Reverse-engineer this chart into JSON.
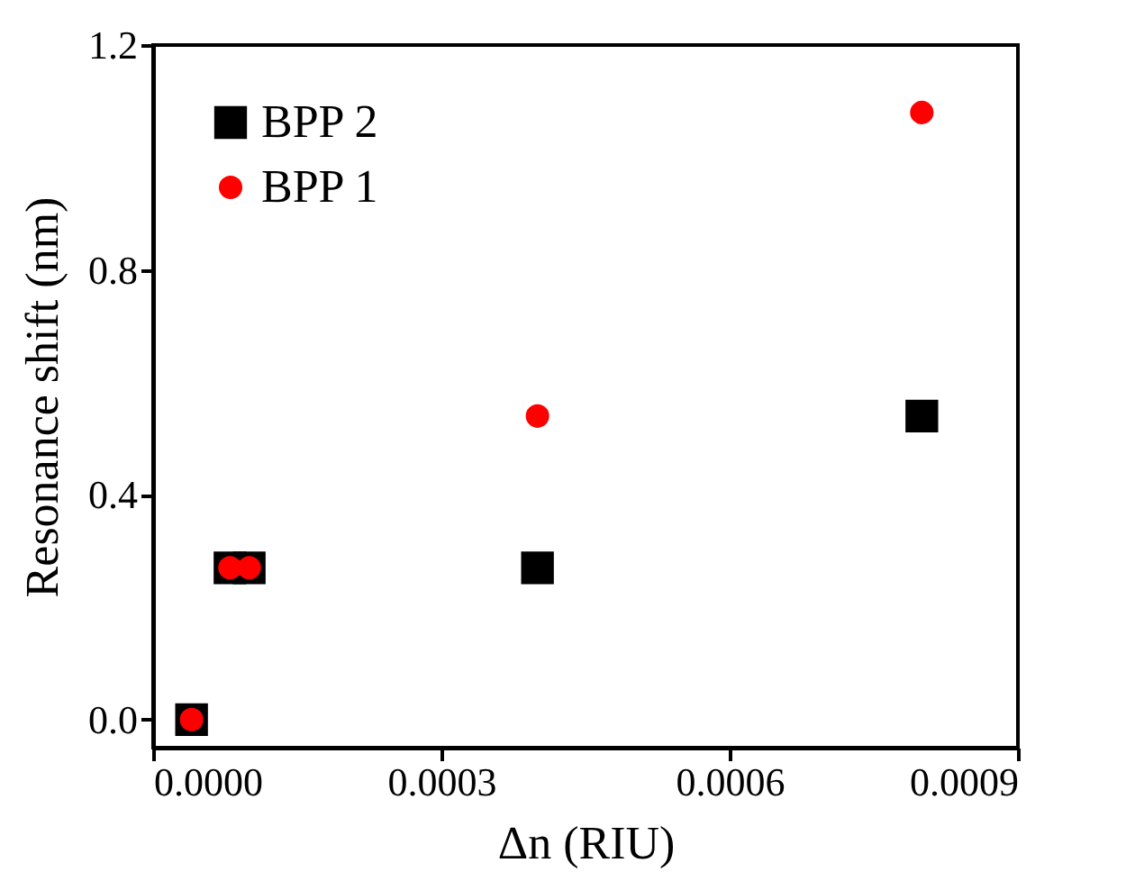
{
  "chart_data": {
    "type": "scatter",
    "xlabel": "Δn (RIU)",
    "ylabel": "Resonance shift (nm)",
    "x": [
      4e-05,
      8e-05,
      0.0001,
      0.0004,
      0.0008
    ],
    "series": [
      {
        "name": "BPP 2",
        "color": "#000000",
        "marker": "square",
        "values": [
          0,
          0.27,
          0.27,
          0.27,
          0.54
        ]
      },
      {
        "name": "BPP 1",
        "color": "#ff0000",
        "marker": "circle",
        "values": [
          0,
          0.27,
          0.27,
          0.54,
          1.08
        ]
      }
    ],
    "xlim": [
      0,
      0.0009
    ],
    "xticks": [
      {
        "value": 0,
        "label": "0.0000"
      },
      {
        "value": 0.0003,
        "label": "0.0003"
      },
      {
        "value": 0.0006,
        "label": "0.0006"
      },
      {
        "value": 0.0009,
        "label": "0.0009"
      }
    ],
    "ylim": [
      -0.05,
      1.2
    ],
    "yticks": [
      {
        "value": 0,
        "label": "0.0"
      },
      {
        "value": 0.4,
        "label": "0.4"
      },
      {
        "value": 0.8,
        "label": "0.8"
      },
      {
        "value": 1.2,
        "label": "1.2"
      }
    ],
    "legend": "top left",
    "grid": false
  }
}
